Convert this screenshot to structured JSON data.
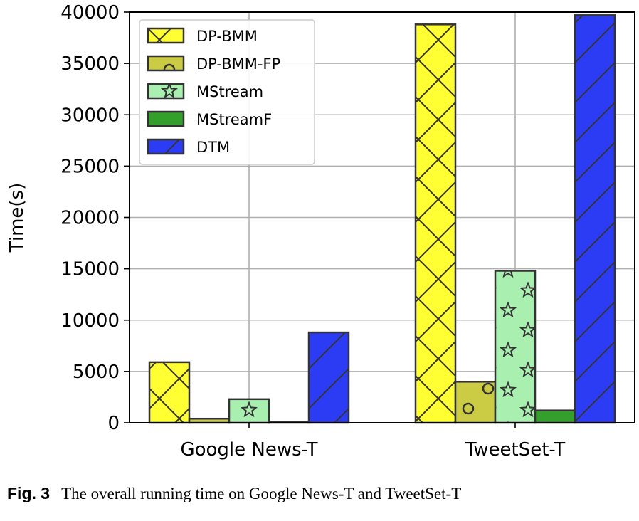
{
  "chart_data": {
    "type": "bar",
    "categories": [
      "Google News-T",
      "TweetSet-T"
    ],
    "series": [
      {
        "name": "DP-BMM",
        "values": [
          5900,
          38800
        ],
        "color": "#ffff33",
        "pattern": "cross"
      },
      {
        "name": "DP-BMM-FP",
        "values": [
          400,
          4000
        ],
        "color": "#cccc44",
        "pattern": "circle"
      },
      {
        "name": "MStream",
        "values": [
          2300,
          14800
        ],
        "color": "#a8efb0",
        "pattern": "star"
      },
      {
        "name": "MStreamF",
        "values": [
          100,
          1200
        ],
        "color": "#33a02c",
        "pattern": "none"
      },
      {
        "name": "DTM",
        "values": [
          8800,
          39700
        ],
        "color": "#2c3cf5",
        "pattern": "slash"
      }
    ],
    "xlabel": "",
    "ylabel": "Time(s)",
    "ylim": [
      0,
      40000
    ],
    "yticks": [
      0,
      5000,
      10000,
      15000,
      20000,
      25000,
      30000,
      35000,
      40000
    ],
    "grid": true,
    "legend_position": "top-left"
  },
  "caption": {
    "label": "Fig. 3",
    "text": "The overall running time on Google News-T and TweetSet-T"
  }
}
